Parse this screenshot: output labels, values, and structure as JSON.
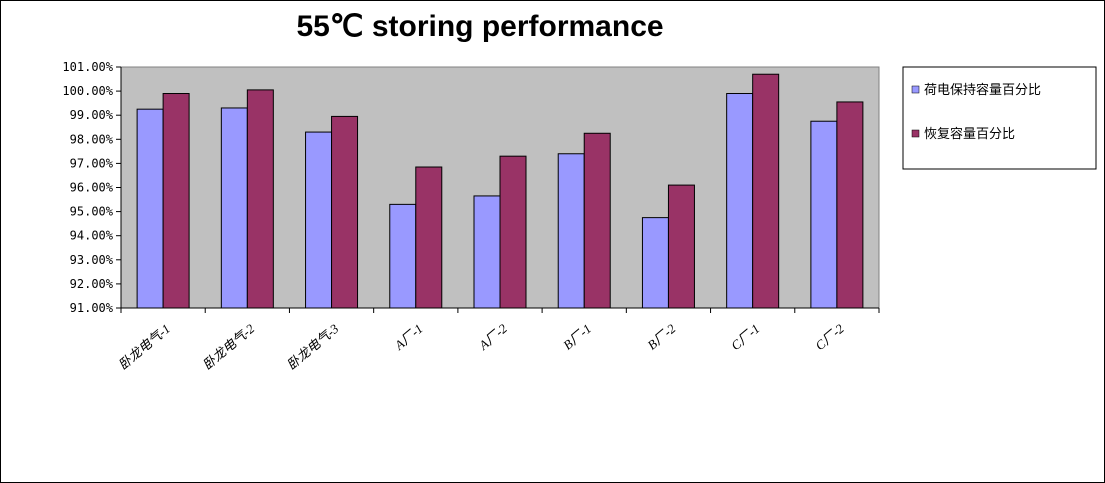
{
  "chart_data": {
    "type": "bar",
    "title": "55℃ storing performance",
    "categories": [
      "卧龙电气-1",
      "卧龙电气-2",
      "卧龙电气-3",
      "A厂-1",
      "A厂-2",
      "B厂-1",
      "B厂-2",
      "C厂-1",
      "C厂-2"
    ],
    "series": [
      {
        "name": "荷电保持容量百分比",
        "color": "#9999ff",
        "values": [
          99.25,
          99.3,
          98.3,
          95.3,
          95.65,
          97.4,
          94.75,
          99.9,
          98.75
        ]
      },
      {
        "name": "恢复容量百分比",
        "color": "#993366",
        "values": [
          99.9,
          100.05,
          98.95,
          96.85,
          97.3,
          98.25,
          96.1,
          100.7,
          99.55
        ]
      }
    ],
    "ylim": [
      91,
      101
    ],
    "ytick_step": 1,
    "ytick_labels": [
      "91.00%",
      "92.00%",
      "93.00%",
      "94.00%",
      "95.00%",
      "96.00%",
      "97.00%",
      "98.00%",
      "99.00%",
      "100.00%",
      "101.00%"
    ],
    "plot_background": "#c0c0c0",
    "grid": false,
    "legend_position": "right"
  }
}
